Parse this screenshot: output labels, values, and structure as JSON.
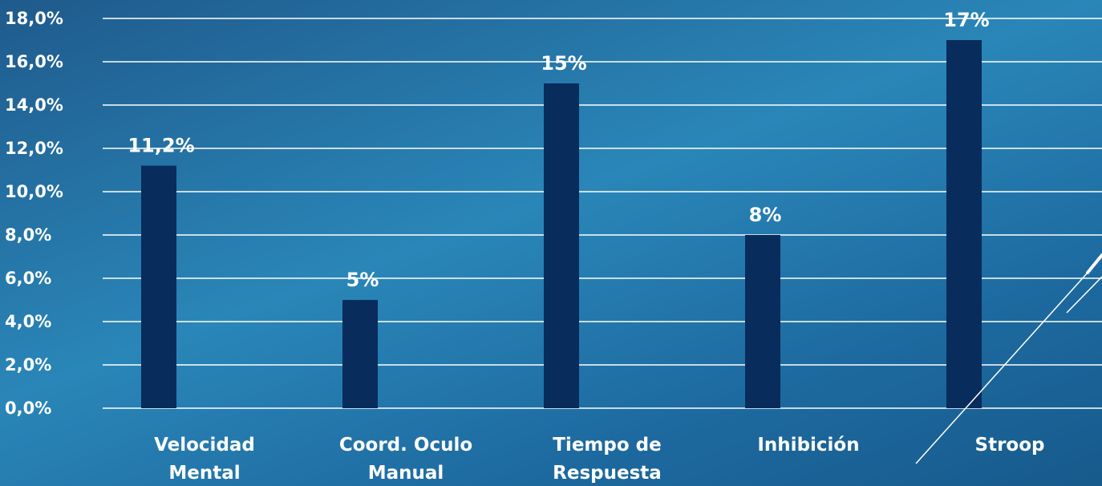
{
  "chart_data": {
    "type": "bar",
    "categories": [
      [
        "Velocidad",
        "Mental"
      ],
      [
        "Coord. Oculo",
        "Manual"
      ],
      [
        "Tiempo de",
        "Respuesta"
      ],
      [
        "Inhibición"
      ],
      [
        "Stroop"
      ]
    ],
    "values": [
      11.2,
      5,
      15,
      8,
      17
    ],
    "data_labels": [
      "11,2%",
      "5%",
      "15%",
      "8%",
      "17%"
    ],
    "y_ticks": [
      "0,0%",
      "2,0%",
      "4,0%",
      "6,0%",
      "8,0%",
      "10,0%",
      "12,0%",
      "14,0%",
      "16,0%",
      "18,0%"
    ],
    "ylim": [
      0,
      18
    ],
    "grid": true,
    "bar_color": "#082c5c",
    "grid_color": "#ffffff",
    "text_color": "#ffffff"
  }
}
